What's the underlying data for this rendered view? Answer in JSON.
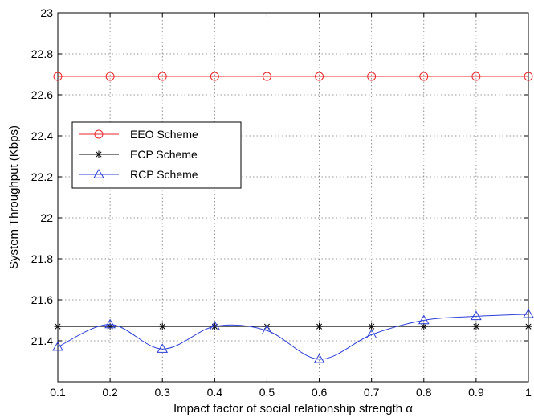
{
  "chart_data": {
    "type": "line",
    "title": "",
    "xlabel": "Impact factor of social relationship strength α",
    "ylabel": "System Throughput (Kbps)",
    "x": [
      0.1,
      0.2,
      0.3,
      0.4,
      0.5,
      0.6,
      0.7,
      0.8,
      0.9,
      1.0
    ],
    "xlim": [
      0.1,
      1.0
    ],
    "ylim": [
      21.2,
      23.0
    ],
    "x_ticks": [
      "0.1",
      "0.2",
      "0.3",
      "0.4",
      "0.5",
      "0.6",
      "0.7",
      "0.8",
      "0.9",
      "1"
    ],
    "y_ticks": [
      "21.4",
      "21.6",
      "21.8",
      "22",
      "22.2",
      "22.4",
      "22.6",
      "22.8",
      "23"
    ],
    "grid": true,
    "legend_position": "upper-left",
    "series": [
      {
        "name": "EEO Scheme",
        "color": "#e8272a",
        "marker": "circle",
        "values": [
          22.69,
          22.69,
          22.69,
          22.69,
          22.69,
          22.69,
          22.69,
          22.69,
          22.69,
          22.69
        ]
      },
      {
        "name": "ECP Scheme",
        "color": "#000000",
        "marker": "star",
        "values": [
          21.47,
          21.47,
          21.47,
          21.47,
          21.47,
          21.47,
          21.47,
          21.47,
          21.47,
          21.47
        ]
      },
      {
        "name": "RCP Scheme",
        "color": "#2b3fd6",
        "marker": "triangle",
        "values": [
          21.37,
          21.48,
          21.36,
          21.47,
          21.45,
          21.31,
          21.43,
          21.5,
          21.52,
          21.53
        ]
      }
    ]
  }
}
